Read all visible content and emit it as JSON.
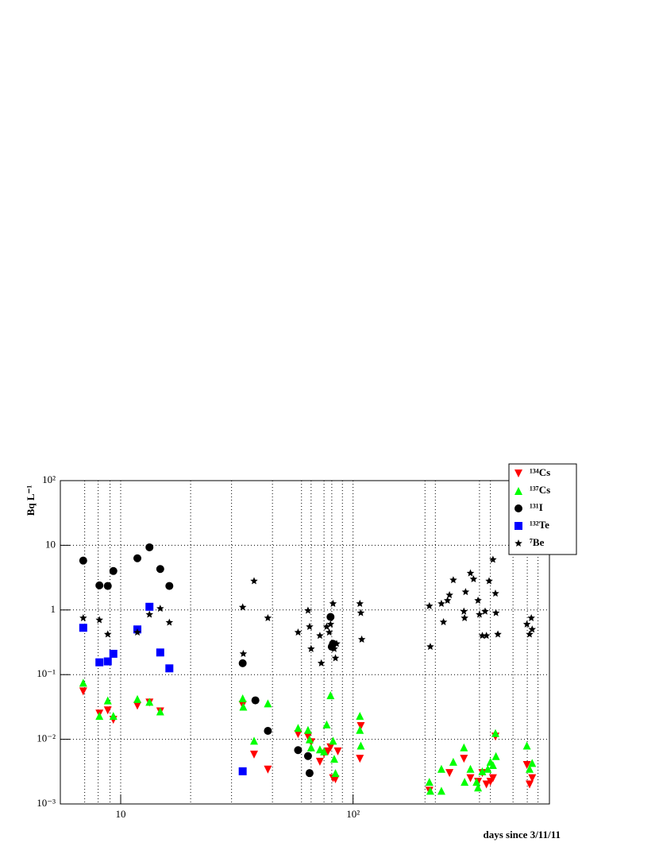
{
  "chart_data": {
    "type": "scatter",
    "x_label": "days since 3/11/11",
    "y_label": "Bq L⁻¹",
    "xscale": "log",
    "yscale": "log",
    "xlim": [
      5.5,
      700
    ],
    "ylim": [
      0.001,
      100
    ],
    "xticks": [
      10,
      {
        "value": 100,
        "label": "10²"
      }
    ],
    "yticks": [
      {
        "value": 0.001,
        "label": "10⁻³"
      },
      {
        "value": 0.01,
        "label": "10⁻²"
      },
      {
        "value": 0.1,
        "label": "10⁻¹"
      },
      1,
      10,
      {
        "value": 100,
        "label": "10²"
      }
    ],
    "xgrid": [
      7,
      8,
      9,
      10,
      20,
      30,
      45,
      60,
      66,
      75,
      81,
      90,
      100,
      204,
      226,
      350,
      390,
      488,
      562,
      625
    ],
    "grid": true,
    "legend": "top-right",
    "series": [
      {
        "name": "¹³⁴Cs",
        "color": "#ff0000",
        "marker": "triangle-down",
        "x": [
          6.9,
          8.1,
          8.8,
          9.3,
          11.8,
          13.3,
          14.8,
          33.5,
          37.5,
          43,
          58,
          64,
          66,
          72,
          75,
          78,
          80,
          82,
          84,
          86,
          107,
          108,
          213,
          260,
          300,
          320,
          345,
          360,
          375,
          390,
          400,
          410,
          560,
          575,
          590
        ],
        "y": [
          0.055,
          0.025,
          0.028,
          0.02,
          0.033,
          0.037,
          0.027,
          0.034,
          0.0058,
          0.0034,
          0.012,
          0.011,
          0.009,
          0.0045,
          0.006,
          0.0065,
          0.0075,
          0.0025,
          0.0024,
          0.0065,
          0.005,
          0.016,
          0.0016,
          0.003,
          0.005,
          0.0025,
          0.0022,
          0.003,
          0.002,
          0.0022,
          0.0025,
          0.011,
          0.004,
          0.002,
          0.0025
        ]
      },
      {
        "name": "¹³⁷Cs",
        "color": "#00ff00",
        "marker": "triangle-up",
        "x": [
          6.9,
          8.1,
          8.8,
          9.3,
          11.8,
          13.3,
          14.8,
          33.5,
          33.7,
          37.5,
          43,
          58,
          64,
          65,
          66,
          72,
          75,
          77,
          80,
          82,
          83,
          84,
          107,
          107,
          108,
          213,
          215,
          240,
          240,
          270,
          300,
          302,
          320,
          340,
          345,
          360,
          380,
          390,
          400,
          410,
          412,
          560,
          575,
          590
        ],
        "y": [
          0.075,
          0.023,
          0.04,
          0.023,
          0.042,
          0.038,
          0.027,
          0.043,
          0.032,
          0.0095,
          0.036,
          0.015,
          0.014,
          0.01,
          0.0075,
          0.007,
          0.0065,
          0.017,
          0.048,
          0.0095,
          0.005,
          0.003,
          0.023,
          0.014,
          0.008,
          0.0022,
          0.0016,
          0.0035,
          0.0016,
          0.0045,
          0.0075,
          0.0022,
          0.0035,
          0.0022,
          0.0018,
          0.0032,
          0.0035,
          0.0045,
          0.004,
          0.0125,
          0.0055,
          0.008,
          0.0035,
          0.0043
        ]
      },
      {
        "name": "¹³¹I",
        "color": "#000000",
        "marker": "circle",
        "x": [
          6.9,
          8.1,
          8.8,
          9.3,
          11.8,
          13.3,
          14.8,
          16.2,
          33.5,
          38,
          43,
          58,
          64,
          65,
          80,
          81,
          82
        ],
        "y": [
          5.8,
          2.4,
          2.35,
          4.0,
          6.3,
          9.3,
          4.3,
          2.35,
          0.15,
          0.04,
          0.0135,
          0.0068,
          0.0055,
          0.003,
          0.78,
          0.27,
          0.3
        ]
      },
      {
        "name": "¹³²Te",
        "color": "#0000ff",
        "marker": "square",
        "x": [
          6.9,
          8.1,
          8.8,
          9.3,
          11.8,
          13.3,
          14.8,
          16.2,
          33.5
        ],
        "y": [
          0.53,
          0.155,
          0.16,
          0.21,
          0.5,
          1.12,
          0.22,
          0.125,
          0.0032
        ]
      },
      {
        "name": "⁷Be",
        "color": "#000000",
        "marker": "star",
        "x": [
          6.9,
          8.1,
          8.8,
          11.8,
          13.3,
          14.8,
          16.2,
          33.5,
          33.7,
          37.5,
          43,
          58,
          64,
          65,
          66,
          72,
          73,
          77,
          79,
          80,
          82,
          83,
          84,
          85,
          107,
          108,
          109,
          213,
          215,
          240,
          245,
          255,
          260,
          270,
          300,
          302,
          305,
          320,
          330,
          345,
          350,
          360,
          370,
          375,
          385,
          400,
          410,
          412,
          420,
          560,
          575,
          585,
          590
        ],
        "y": [
          0.75,
          0.7,
          0.42,
          0.45,
          0.85,
          1.05,
          0.64,
          1.1,
          0.21,
          2.8,
          0.75,
          0.45,
          0.98,
          0.55,
          0.25,
          0.4,
          0.15,
          0.55,
          0.45,
          0.6,
          1.25,
          0.25,
          0.18,
          0.3,
          1.25,
          0.9,
          0.35,
          1.15,
          0.27,
          1.25,
          0.65,
          1.4,
          1.7,
          2.9,
          0.95,
          0.75,
          1.9,
          3.7,
          3.0,
          1.4,
          0.85,
          0.4,
          0.95,
          0.4,
          2.8,
          6.0,
          1.8,
          0.9,
          0.42,
          0.6,
          0.42,
          0.75,
          0.5
        ]
      }
    ]
  }
}
